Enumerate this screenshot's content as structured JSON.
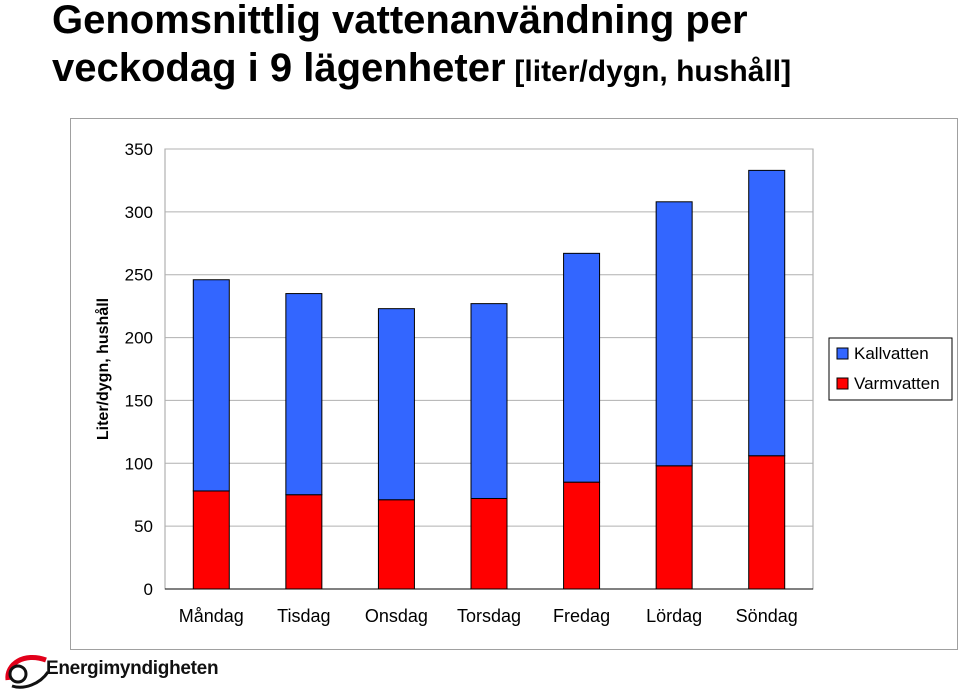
{
  "title": {
    "line1": "Genomsnittlig vattenanvändning per",
    "line2": "veckodag i 9 lägenheter",
    "unit": "[liter/dygn, hushåll]"
  },
  "logo": {
    "text": "Energimyndigheten"
  },
  "chart_data": {
    "type": "bar",
    "stacked": true,
    "categories": [
      "Måndag",
      "Tisdag",
      "Onsdag",
      "Torsdag",
      "Fredag",
      "Lördag",
      "Söndag"
    ],
    "series": [
      {
        "name": "Varmvatten",
        "color": "#ff0000",
        "values": [
          78,
          75,
          71,
          72,
          85,
          98,
          106
        ]
      },
      {
        "name": "Kallvatten",
        "color": "#3366ff",
        "values": [
          168,
          160,
          152,
          155,
          182,
          210,
          227
        ]
      }
    ],
    "ylabel": "Liter/dygn, hushåll",
    "ylim": [
      0,
      350
    ],
    "yticks": [
      0,
      50,
      100,
      150,
      200,
      250,
      300,
      350
    ],
    "grid": true,
    "legend": "right",
    "legend_entries": [
      "Kallvatten",
      "Varmvatten"
    ]
  }
}
